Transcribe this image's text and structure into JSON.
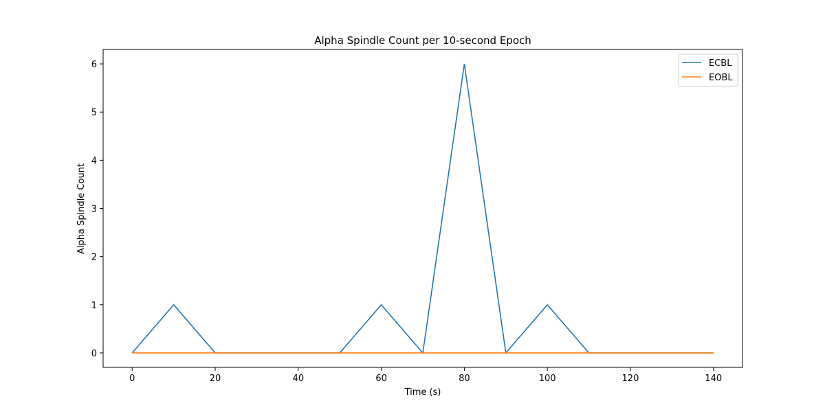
{
  "chart_data": {
    "type": "line",
    "title": "Alpha Spindle Count per 10-second Epoch",
    "xlabel": "Time (s)",
    "ylabel": "Alpha Spindle Count",
    "xlim": [
      -7,
      147
    ],
    "ylim": [
      -0.3,
      6.3
    ],
    "xticks": [
      0,
      20,
      40,
      60,
      80,
      100,
      120,
      140
    ],
    "yticks": [
      0,
      1,
      2,
      3,
      4,
      5,
      6
    ],
    "grid": false,
    "legend_position": "top-right",
    "x": [
      0,
      10,
      20,
      30,
      40,
      50,
      60,
      70,
      80,
      90,
      100,
      110,
      120,
      130,
      140
    ],
    "series": [
      {
        "name": "ECBL",
        "color": "#1f77b4",
        "values": [
          0,
          1,
          0,
          0,
          0,
          0,
          1,
          0,
          6,
          0,
          1,
          0,
          0,
          0,
          0
        ]
      },
      {
        "name": "EOBL",
        "color": "#ff7f0e",
        "values": [
          0,
          0,
          0,
          0,
          0,
          0,
          0,
          0,
          0,
          0,
          0,
          0,
          0,
          0,
          0
        ]
      }
    ]
  }
}
